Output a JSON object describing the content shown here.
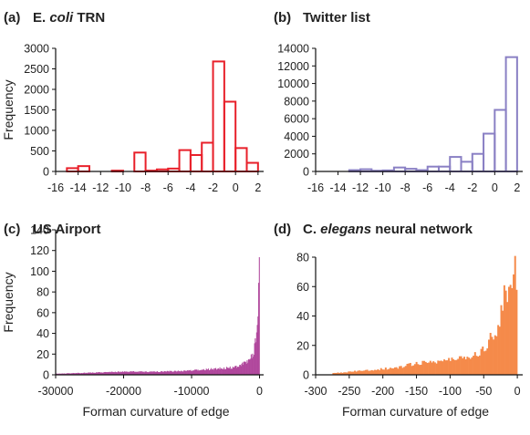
{
  "chart_data": [
    {
      "panel": "(a)",
      "title_parts": [
        {
          "text": "E. ",
          "style": "bold"
        },
        {
          "text": "coli",
          "style": "italic"
        },
        {
          "text": " TRN",
          "style": "bold"
        }
      ],
      "type": "bar",
      "style": "outline",
      "color": "#e8202a",
      "ylabel": "Frequency",
      "xlabel": "",
      "xlim": [
        -16,
        2.5
      ],
      "ylim": [
        0,
        3000
      ],
      "xticks": [
        -16,
        -14,
        -12,
        -10,
        -8,
        -6,
        -4,
        -2,
        0,
        2
      ],
      "yticks": [
        0,
        500,
        1000,
        1500,
        2000,
        2500,
        3000
      ],
      "bin_width": 1,
      "bin_centers": [
        -14.5,
        -13.5,
        -12.5,
        -11.5,
        -10.5,
        -9.5,
        -8.5,
        -7.5,
        -6.5,
        -5.5,
        -4.5,
        -3.5,
        -2.5,
        -1.5,
        -0.5,
        0.5,
        1.5
      ],
      "values": [
        80,
        130,
        0,
        0,
        20,
        0,
        460,
        20,
        50,
        70,
        520,
        400,
        700,
        2680,
        1700,
        570,
        210
      ]
    },
    {
      "panel": "(b)",
      "title_parts": [
        {
          "text": "Twitter list",
          "style": "bold"
        }
      ],
      "type": "bar",
      "style": "outline",
      "color": "#8a80c4",
      "ylabel": "",
      "xlabel": "",
      "xlim": [
        -16,
        2.5
      ],
      "ylim": [
        0,
        14000
      ],
      "xticks": [
        -16,
        -14,
        -12,
        -10,
        -8,
        -6,
        -4,
        -2,
        0,
        2
      ],
      "yticks": [
        0,
        2000,
        4000,
        6000,
        8000,
        10000,
        12000,
        14000
      ],
      "bin_width": 1,
      "bin_centers": [
        -12.5,
        -11.5,
        -10.5,
        -9.5,
        -8.5,
        -7.5,
        -6.5,
        -5.5,
        -4.5,
        -3.5,
        -2.5,
        -1.5,
        -0.5,
        0.5,
        1.5
      ],
      "values": [
        150,
        250,
        80,
        120,
        450,
        300,
        150,
        550,
        550,
        1650,
        1100,
        2000,
        4300,
        7000,
        13000
      ]
    },
    {
      "panel": "(c)",
      "title_parts": [
        {
          "text": "US Airport",
          "style": "bold"
        }
      ],
      "type": "histogram",
      "style": "filled",
      "color": "#b0479c",
      "ylabel": "Frequency",
      "xlabel": "Forman curvature of edge",
      "xlim": [
        -30000,
        600
      ],
      "ylim": [
        0,
        140
      ],
      "xticks": [
        -30000,
        -20000,
        -10000,
        0
      ],
      "yticks": [
        0,
        20,
        40,
        60,
        80,
        100,
        120,
        140
      ],
      "x": [
        -30000,
        -25000,
        -20000,
        -15000,
        -10000,
        -8000,
        -6000,
        -4000,
        -3000,
        -2000,
        -1500,
        -1000,
        -700,
        -500,
        -300,
        -150,
        -50,
        0
      ],
      "values": [
        1,
        2,
        3,
        3,
        4,
        5,
        6,
        7,
        9,
        12,
        15,
        20,
        28,
        38,
        55,
        75,
        118,
        30
      ]
    },
    {
      "panel": "(d)",
      "title_parts": [
        {
          "text": "C. ",
          "style": "bold"
        },
        {
          "text": "elegans",
          "style": "italic"
        },
        {
          "text": " neural network",
          "style": "bold"
        }
      ],
      "type": "histogram",
      "style": "filled",
      "color": "#f58a4a",
      "ylabel": "",
      "xlabel": "Forman curvature of edge",
      "xlim": [
        -300,
        8
      ],
      "ylim": [
        0,
        80
      ],
      "xticks": [
        -300,
        -250,
        -200,
        -150,
        -100,
        -50,
        0
      ],
      "yticks": [
        0,
        20,
        40,
        60,
        80
      ],
      "x": [
        -275,
        -250,
        -225,
        -200,
        -175,
        -150,
        -125,
        -100,
        -80,
        -60,
        -50,
        -40,
        -30,
        -25,
        -20,
        -15,
        -10,
        -7,
        -5,
        -3,
        -1,
        0
      ],
      "values": [
        1,
        2,
        3,
        4,
        5,
        8,
        9,
        10,
        12,
        14,
        18,
        25,
        30,
        42,
        50,
        58,
        65,
        72,
        76,
        74,
        60,
        40
      ]
    }
  ]
}
